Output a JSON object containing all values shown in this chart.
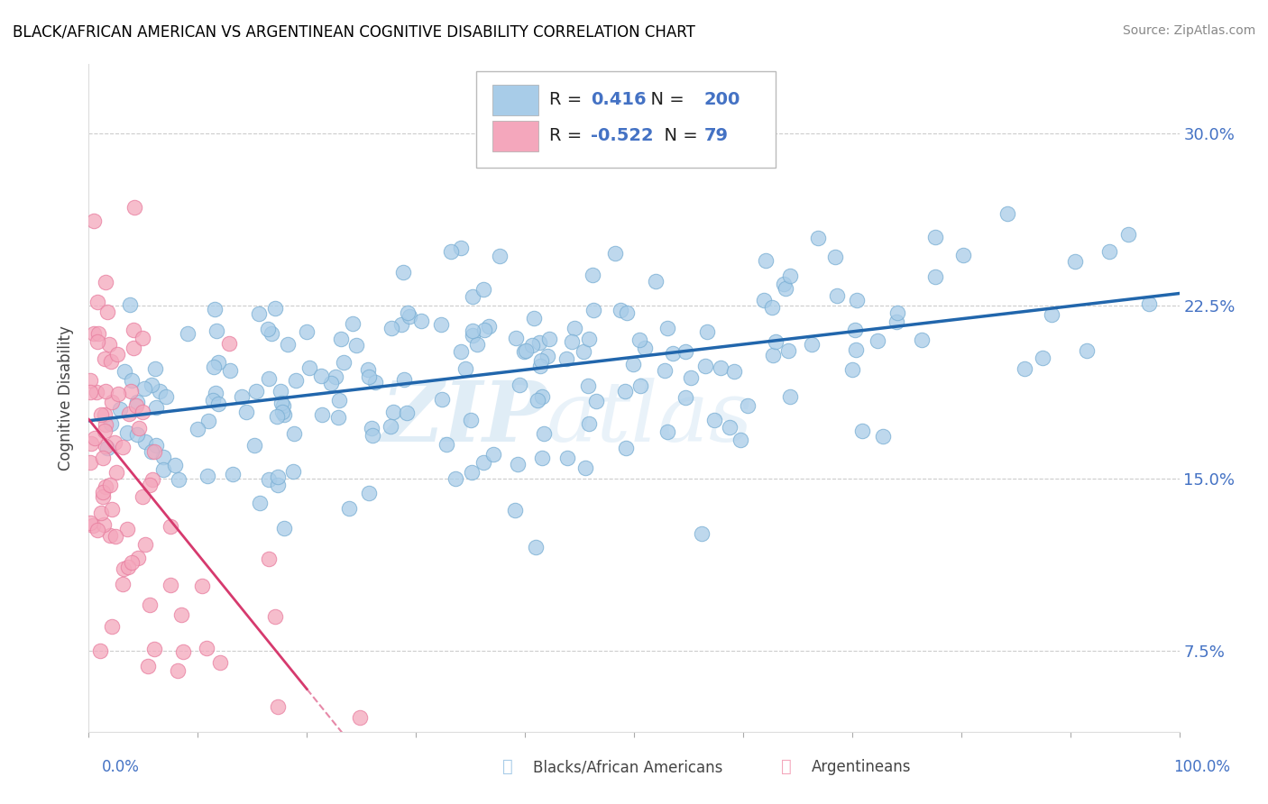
{
  "title": "BLACK/AFRICAN AMERICAN VS ARGENTINEAN COGNITIVE DISABILITY CORRELATION CHART",
  "source": "Source: ZipAtlas.com",
  "ylabel": "Cognitive Disability",
  "yticks": [
    "7.5%",
    "15.0%",
    "22.5%",
    "30.0%"
  ],
  "ytick_vals": [
    0.075,
    0.15,
    0.225,
    0.3
  ],
  "legend_blue_r": "0.416",
  "legend_blue_n": "200",
  "legend_pink_r": "-0.522",
  "legend_pink_n": "79",
  "blue_color": "#a8cce8",
  "blue_edge_color": "#7aafd4",
  "pink_color": "#f4a7bc",
  "pink_edge_color": "#e87fa0",
  "blue_line_color": "#2166ac",
  "pink_line_color": "#d63a6e",
  "watermark_zip": "ZIP",
  "watermark_atlas": "atlas",
  "blue_r": 0.416,
  "blue_n": 200,
  "pink_r": -0.522,
  "pink_n": 79,
  "xmin": 0.0,
  "xmax": 1.0,
  "ymin": 0.04,
  "ymax": 0.33,
  "legend_text_color": "#333333",
  "legend_value_color": "#4472c4"
}
